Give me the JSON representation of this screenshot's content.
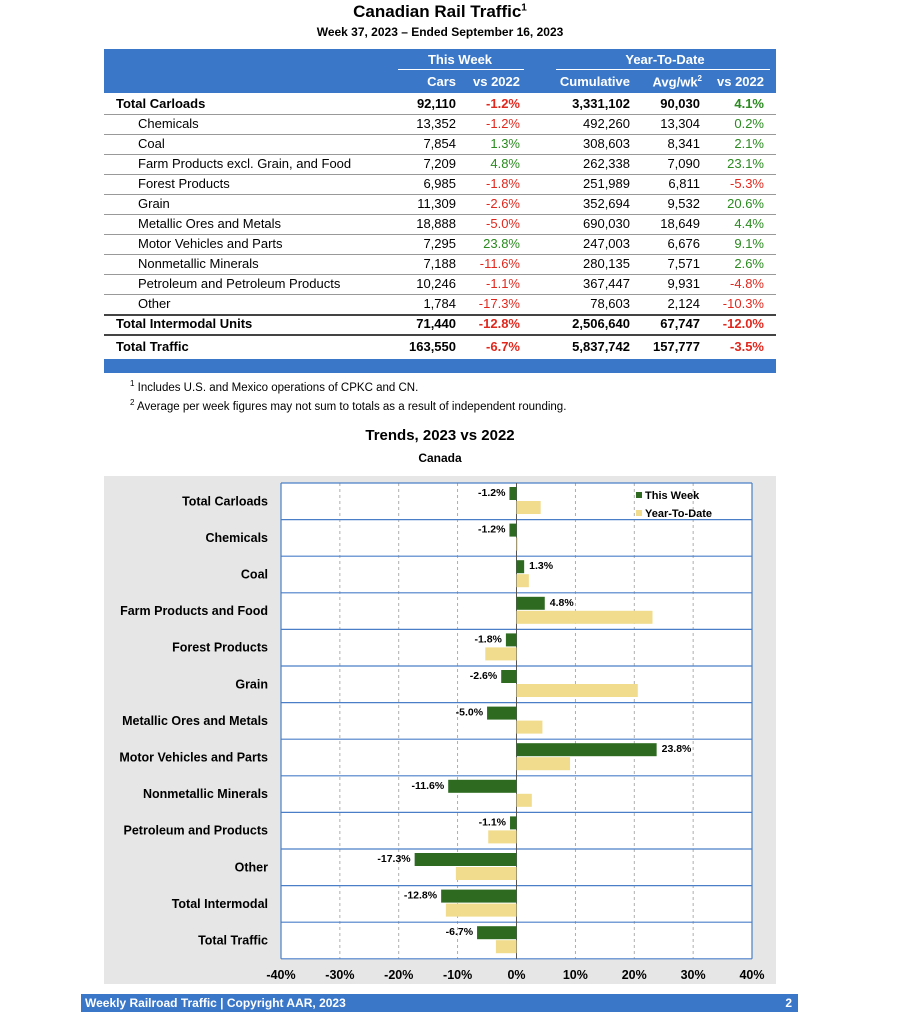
{
  "header": {
    "title": "Canadian Rail Traffic",
    "title_sup": "1",
    "subtitle": "Week 37, 2023 – Ended September 16, 2023"
  },
  "table": {
    "group_this_week": "This Week",
    "group_ytd": "Year-To-Date",
    "col_cars": "Cars",
    "col_vs": "vs 2022",
    "col_cumulative": "Cumulative",
    "col_avg": "Avg/wk",
    "col_avg_sup": "2",
    "col_ytd_vs": "vs 2022",
    "rows": [
      {
        "label": "Total Carloads",
        "cars": "92,110",
        "vs": "-1.2%",
        "cum": "3,331,102",
        "avg": "90,030",
        "ytd": "4.1%"
      },
      {
        "label": "Chemicals",
        "cars": "13,352",
        "vs": "-1.2%",
        "cum": "492,260",
        "avg": "13,304",
        "ytd": "0.2%"
      },
      {
        "label": "Coal",
        "cars": "7,854",
        "vs": "1.3%",
        "cum": "308,603",
        "avg": "8,341",
        "ytd": "2.1%"
      },
      {
        "label": "Farm Products excl. Grain, and Food",
        "cars": "7,209",
        "vs": "4.8%",
        "cum": "262,338",
        "avg": "7,090",
        "ytd": "23.1%"
      },
      {
        "label": "Forest Products",
        "cars": "6,985",
        "vs": "-1.8%",
        "cum": "251,989",
        "avg": "6,811",
        "ytd": "-5.3%"
      },
      {
        "label": "Grain",
        "cars": "11,309",
        "vs": "-2.6%",
        "cum": "352,694",
        "avg": "9,532",
        "ytd": "20.6%"
      },
      {
        "label": "Metallic Ores and Metals",
        "cars": "18,888",
        "vs": "-5.0%",
        "cum": "690,030",
        "avg": "18,649",
        "ytd": "4.4%"
      },
      {
        "label": "Motor Vehicles and Parts",
        "cars": "7,295",
        "vs": "23.8%",
        "cum": "247,003",
        "avg": "6,676",
        "ytd": "9.1%"
      },
      {
        "label": "Nonmetallic Minerals",
        "cars": "7,188",
        "vs": "-11.6%",
        "cum": "280,135",
        "avg": "7,571",
        "ytd": "2.6%"
      },
      {
        "label": "Petroleum and Petroleum Products",
        "cars": "10,246",
        "vs": "-1.1%",
        "cum": "367,447",
        "avg": "9,931",
        "ytd": "-4.8%"
      },
      {
        "label": "Other",
        "cars": "1,784",
        "vs": "-17.3%",
        "cum": "78,603",
        "avg": "2,124",
        "ytd": "-10.3%"
      },
      {
        "label": "Total Intermodal Units",
        "cars": "71,440",
        "vs": "-12.8%",
        "cum": "2,506,640",
        "avg": "67,747",
        "ytd": "-12.0%"
      },
      {
        "label": "Total Traffic",
        "cars": "163,550",
        "vs": "-6.7%",
        "cum": "5,837,742",
        "avg": "157,777",
        "ytd": "-3.5%"
      }
    ]
  },
  "footnotes": [
    {
      "mark": "1",
      "text": "Includes U.S. and Mexico operations of CPKC and CN."
    },
    {
      "mark": "2",
      "text": "Average per week figures may not sum to totals as a result of independent rounding."
    }
  ],
  "colors": {
    "header_blue": "#3a77c9",
    "this_week": "#2e6b21",
    "ytd": "#f0dc8c",
    "neg": "#e0281e",
    "pos": "#2a8a1f"
  },
  "chart_data": {
    "type": "bar",
    "orientation": "horizontal",
    "title": "Trends, 2023 vs 2022",
    "subtitle": "Canada",
    "categories": [
      "Total Carloads",
      "Chemicals",
      "Coal",
      "Farm Products and Food",
      "Forest Products",
      "Grain",
      "Metallic Ores and Metals",
      "Motor Vehicles and Parts",
      "Nonmetallic Minerals",
      "Petroleum and Products",
      "Other",
      "Total Intermodal",
      "Total Traffic"
    ],
    "series": [
      {
        "name": "This Week",
        "values": [
          -1.2,
          -1.2,
          1.3,
          4.8,
          -1.8,
          -2.6,
          -5.0,
          23.8,
          -11.6,
          -1.1,
          -17.3,
          -12.8,
          -6.7
        ],
        "labels": [
          "-1.2%",
          "-1.2%",
          "1.3%",
          "4.8%",
          "-1.8%",
          "-2.6%",
          "-5.0%",
          "23.8%",
          "-11.6%",
          "-1.1%",
          "-17.3%",
          "-12.8%",
          "-6.7%"
        ]
      },
      {
        "name": "Year-To-Date",
        "values": [
          4.1,
          0.2,
          2.1,
          23.1,
          -5.3,
          20.6,
          4.4,
          9.1,
          2.6,
          -4.8,
          -10.3,
          -12.0,
          -3.5
        ]
      }
    ],
    "xlim": [
      -40,
      40
    ],
    "xticks": [
      "-40%",
      "-30%",
      "-20%",
      "-10%",
      "0%",
      "10%",
      "20%",
      "30%",
      "40%"
    ],
    "legend": "top-right"
  },
  "footer": {
    "text": "Weekly Railroad Traffic | Copyright AAR, 2023",
    "page": "2"
  }
}
